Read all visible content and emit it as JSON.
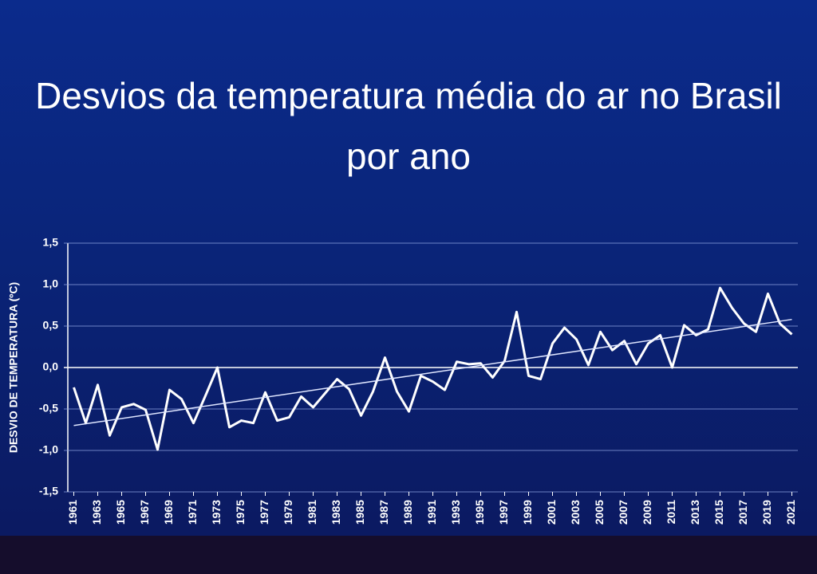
{
  "chart_data": {
    "type": "line",
    "title": "Desvios da temperatura média do ar no Brasil por ano",
    "ylabel": "DESVIO DE TEMPERATURA (ºC)",
    "x": [
      1961,
      1962,
      1963,
      1964,
      1965,
      1966,
      1967,
      1968,
      1969,
      1970,
      1971,
      1972,
      1973,
      1974,
      1975,
      1976,
      1977,
      1978,
      1979,
      1980,
      1981,
      1982,
      1983,
      1984,
      1985,
      1986,
      1987,
      1988,
      1989,
      1990,
      1991,
      1992,
      1993,
      1994,
      1995,
      1996,
      1997,
      1998,
      1999,
      2000,
      2001,
      2002,
      2003,
      2004,
      2005,
      2006,
      2007,
      2008,
      2009,
      2010,
      2011,
      2012,
      2013,
      2014,
      2015,
      2016,
      2017,
      2018,
      2019,
      2020,
      2021
    ],
    "values": [
      -0.24,
      -0.67,
      -0.21,
      -0.82,
      -0.48,
      -0.44,
      -0.51,
      -0.99,
      -0.27,
      -0.38,
      -0.67,
      -0.34,
      0.0,
      -0.72,
      -0.64,
      -0.67,
      -0.3,
      -0.64,
      -0.6,
      -0.35,
      -0.48,
      -0.31,
      -0.14,
      -0.26,
      -0.58,
      -0.29,
      0.12,
      -0.29,
      -0.53,
      -0.1,
      -0.17,
      -0.27,
      0.07,
      0.04,
      0.05,
      -0.12,
      0.08,
      0.67,
      -0.1,
      -0.14,
      0.29,
      0.48,
      0.34,
      0.03,
      0.43,
      0.21,
      0.32,
      0.04,
      0.29,
      0.39,
      0.0,
      0.51,
      0.39,
      0.46,
      0.96,
      0.72,
      0.53,
      0.43,
      0.89,
      0.53,
      0.4
    ],
    "color": "#ffffff",
    "trend": {
      "x": [
        1961,
        2021
      ],
      "values": [
        -0.7,
        0.58
      ]
    },
    "xlim": [
      1960.5,
      2021.5
    ],
    "xticks": [
      1961,
      1963,
      1965,
      1967,
      1969,
      1971,
      1973,
      1975,
      1977,
      1979,
      1981,
      1983,
      1985,
      1987,
      1989,
      1991,
      1993,
      1995,
      1997,
      1999,
      2001,
      2003,
      2005,
      2007,
      2009,
      2011,
      2013,
      2015,
      2017,
      2019,
      2021
    ],
    "ylim": [
      -1.5,
      1.5
    ],
    "yticks": [
      {
        "value": -1.5,
        "label": "-1,5"
      },
      {
        "value": -1.0,
        "label": "-1,0"
      },
      {
        "value": -0.5,
        "label": "-0,5"
      },
      {
        "value": 0.0,
        "label": "0,0"
      },
      {
        "value": 0.5,
        "label": "0,5"
      },
      {
        "value": 1.0,
        "label": "1,0"
      },
      {
        "value": 1.5,
        "label": "1,5"
      }
    ],
    "grid": true
  }
}
